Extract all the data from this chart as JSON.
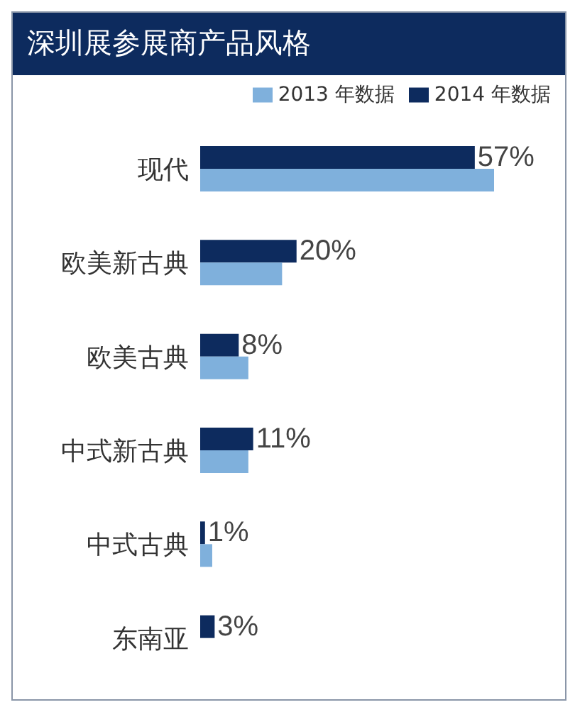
{
  "chart_data": {
    "type": "bar",
    "orientation": "horizontal",
    "title": "深圳展参展商产品风格",
    "categories": [
      "现代",
      "欧美新古典",
      "欧美古典",
      "中式新古典",
      "中式古典",
      "东南亚"
    ],
    "series": [
      {
        "name": "2014 年数据",
        "color": "#0d2b5e",
        "values": [
          57,
          20,
          8,
          11,
          1,
          3
        ],
        "value_labels": [
          "57%",
          "20%",
          "8%",
          "11%",
          "1%",
          "3%"
        ]
      },
      {
        "name": "2013 年数据",
        "color": "#7fb0dc",
        "values": [
          61,
          17,
          10,
          10,
          2.5,
          0
        ]
      }
    ],
    "legend": "top right",
    "grid": false
  }
}
